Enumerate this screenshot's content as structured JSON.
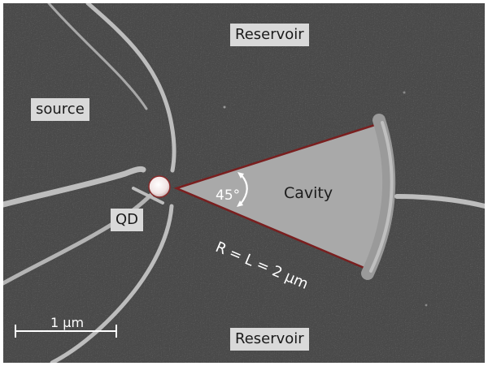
{
  "image": {
    "labels": {
      "reservoir_top": "Reservoir",
      "source": "source",
      "qd": "QD",
      "reservoir_bottom": "Reservoir",
      "cavity": "Cavity",
      "angle": "45°",
      "radius": "R = L = 2 µm",
      "scale_bar": "1 µm"
    },
    "colors": {
      "substrate": "#4a4a4a",
      "gate": "#b8b8b8",
      "cavity_fill": "#a9a9a9",
      "cavity_outline": "#7a1f1f",
      "label_box": "#d9d9d9"
    }
  }
}
